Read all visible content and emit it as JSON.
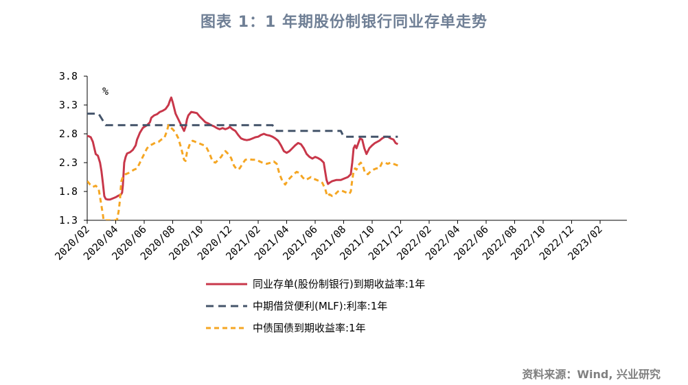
{
  "chart_data": {
    "type": "line",
    "title": "图表 1：1 年期股份制银行同业存单走势",
    "ylabel": "%",
    "ylim": [
      1.3,
      3.8
    ],
    "yticks": [
      "3.8",
      "3.3",
      "2.8",
      "2.3",
      "1.8",
      "1.3"
    ],
    "xlim": [
      "2020-02",
      "2023-03"
    ],
    "xticks": [
      "2020/02",
      "2020/04",
      "2020/06",
      "2020/08",
      "2020/10",
      "2020/12",
      "2021/02",
      "2021/04",
      "2021/06",
      "2021/08",
      "2021/10",
      "2021/12",
      "2022/02",
      "2022/04",
      "2022/06",
      "2022/08",
      "2022/10",
      "2022/12",
      "2023/02"
    ],
    "legend_position": "bottom",
    "grid": false,
    "series": [
      {
        "name": "同业存单(股份制银行)到期收益率:1年",
        "color": "#c8374a",
        "style": "solid",
        "points": [
          [
            0,
            2.76
          ],
          [
            0.1,
            2.76
          ],
          [
            0.25,
            2.74
          ],
          [
            0.4,
            2.66
          ],
          [
            0.5,
            2.55
          ],
          [
            0.6,
            2.45
          ],
          [
            0.75,
            2.42
          ],
          [
            0.9,
            2.3
          ],
          [
            1.0,
            2.15
          ],
          [
            1.1,
            1.95
          ],
          [
            1.2,
            1.72
          ],
          [
            1.3,
            1.67
          ],
          [
            1.45,
            1.66
          ],
          [
            1.6,
            1.66
          ],
          [
            1.8,
            1.68
          ],
          [
            2.0,
            1.7
          ],
          [
            2.2,
            1.73
          ],
          [
            2.35,
            1.74
          ],
          [
            2.45,
            1.78
          ],
          [
            2.5,
            1.9
          ],
          [
            2.55,
            2.1
          ],
          [
            2.6,
            2.3
          ],
          [
            2.7,
            2.4
          ],
          [
            2.8,
            2.46
          ],
          [
            3.0,
            2.48
          ],
          [
            3.2,
            2.52
          ],
          [
            3.4,
            2.6
          ],
          [
            3.5,
            2.7
          ],
          [
            3.7,
            2.82
          ],
          [
            3.9,
            2.9
          ],
          [
            4.0,
            2.92
          ],
          [
            4.2,
            2.95
          ],
          [
            4.4,
            3.0
          ],
          [
            4.5,
            3.08
          ],
          [
            4.7,
            3.12
          ],
          [
            4.9,
            3.14
          ],
          [
            5.1,
            3.18
          ],
          [
            5.3,
            3.2
          ],
          [
            5.5,
            3.23
          ],
          [
            5.7,
            3.3
          ],
          [
            5.8,
            3.37
          ],
          [
            5.9,
            3.43
          ],
          [
            6.0,
            3.35
          ],
          [
            6.1,
            3.25
          ],
          [
            6.2,
            3.15
          ],
          [
            6.4,
            3.05
          ],
          [
            6.6,
            2.95
          ],
          [
            6.8,
            2.85
          ],
          [
            6.9,
            2.92
          ],
          [
            7.0,
            3.05
          ],
          [
            7.1,
            3.12
          ],
          [
            7.3,
            3.18
          ],
          [
            7.5,
            3.17
          ],
          [
            7.7,
            3.16
          ],
          [
            7.9,
            3.1
          ],
          [
            8.1,
            3.05
          ],
          [
            8.3,
            3.0
          ],
          [
            8.5,
            2.98
          ],
          [
            8.7,
            2.95
          ],
          [
            8.9,
            2.93
          ],
          [
            9.1,
            2.9
          ],
          [
            9.3,
            2.88
          ],
          [
            9.5,
            2.9
          ],
          [
            9.7,
            2.88
          ],
          [
            9.9,
            2.9
          ],
          [
            10.0,
            2.92
          ],
          [
            10.2,
            2.88
          ],
          [
            10.4,
            2.85
          ],
          [
            10.6,
            2.78
          ],
          [
            10.8,
            2.72
          ],
          [
            11.0,
            2.7
          ],
          [
            11.2,
            2.69
          ],
          [
            11.4,
            2.7
          ],
          [
            11.6,
            2.72
          ],
          [
            11.8,
            2.74
          ],
          [
            12.0,
            2.75
          ],
          [
            12.2,
            2.78
          ],
          [
            12.4,
            2.8
          ],
          [
            12.6,
            2.78
          ],
          [
            12.8,
            2.77
          ],
          [
            13.0,
            2.75
          ],
          [
            13.2,
            2.72
          ],
          [
            13.4,
            2.68
          ],
          [
            13.6,
            2.6
          ],
          [
            13.8,
            2.5
          ],
          [
            14.0,
            2.47
          ],
          [
            14.2,
            2.5
          ],
          [
            14.4,
            2.55
          ],
          [
            14.6,
            2.6
          ],
          [
            14.8,
            2.64
          ],
          [
            15.0,
            2.62
          ],
          [
            15.2,
            2.55
          ],
          [
            15.4,
            2.45
          ],
          [
            15.6,
            2.4
          ],
          [
            15.8,
            2.37
          ],
          [
            16.0,
            2.4
          ],
          [
            16.2,
            2.38
          ],
          [
            16.4,
            2.35
          ],
          [
            16.6,
            2.3
          ],
          [
            16.7,
            2.15
          ],
          [
            16.8,
            2.0
          ],
          [
            16.9,
            1.93
          ],
          [
            17.0,
            1.95
          ],
          [
            17.2,
            1.98
          ],
          [
            17.5,
            2.0
          ],
          [
            17.8,
            2.0
          ],
          [
            18.0,
            2.02
          ],
          [
            18.3,
            2.05
          ],
          [
            18.5,
            2.1
          ],
          [
            18.6,
            2.3
          ],
          [
            18.7,
            2.55
          ],
          [
            18.8,
            2.6
          ],
          [
            18.9,
            2.55
          ],
          [
            19.0,
            2.62
          ],
          [
            19.15,
            2.72
          ],
          [
            19.3,
            2.7
          ],
          [
            19.45,
            2.55
          ],
          [
            19.6,
            2.45
          ],
          [
            19.8,
            2.55
          ],
          [
            20.0,
            2.6
          ],
          [
            20.2,
            2.64
          ],
          [
            20.5,
            2.68
          ],
          [
            20.7,
            2.72
          ],
          [
            20.9,
            2.75
          ],
          [
            21.1,
            2.75
          ],
          [
            21.3,
            2.72
          ],
          [
            21.5,
            2.7
          ],
          [
            21.65,
            2.64
          ],
          [
            21.8,
            2.62
          ]
        ]
      },
      {
        "name": "中期借贷便利(MLF):利率:1年",
        "color": "#44546a",
        "style": "dashed",
        "points": [
          [
            0,
            3.15
          ],
          [
            0.8,
            3.15
          ],
          [
            1.3,
            2.95
          ],
          [
            8.2,
            2.95
          ],
          [
            8.5,
            2.95
          ],
          [
            13.0,
            2.95
          ],
          [
            13.3,
            2.85
          ],
          [
            17.8,
            2.85
          ],
          [
            18.0,
            2.75
          ],
          [
            21.8,
            2.75
          ]
        ]
      },
      {
        "name": "中债国债到期收益率:1年",
        "color": "#f5a623",
        "style": "dashed",
        "points": [
          [
            0,
            1.98
          ],
          [
            0.2,
            1.92
          ],
          [
            0.4,
            1.88
          ],
          [
            0.6,
            1.9
          ],
          [
            0.8,
            1.85
          ],
          [
            0.9,
            1.7
          ],
          [
            1.0,
            1.55
          ],
          [
            1.1,
            1.4
          ],
          [
            1.15,
            1.3
          ],
          [
            1.2,
            1.3
          ],
          [
            1.9,
            1.3
          ],
          [
            2.0,
            1.3
          ],
          [
            2.1,
            1.32
          ],
          [
            2.2,
            1.45
          ],
          [
            2.3,
            1.65
          ],
          [
            2.35,
            1.85
          ],
          [
            2.4,
            1.98
          ],
          [
            2.5,
            2.05
          ],
          [
            2.7,
            2.1
          ],
          [
            2.9,
            2.12
          ],
          [
            3.1,
            2.15
          ],
          [
            3.3,
            2.18
          ],
          [
            3.5,
            2.2
          ],
          [
            3.7,
            2.3
          ],
          [
            3.9,
            2.4
          ],
          [
            4.0,
            2.45
          ],
          [
            4.2,
            2.55
          ],
          [
            4.4,
            2.6
          ],
          [
            4.6,
            2.62
          ],
          [
            4.8,
            2.65
          ],
          [
            5.0,
            2.66
          ],
          [
            5.2,
            2.7
          ],
          [
            5.4,
            2.72
          ],
          [
            5.6,
            2.85
          ],
          [
            5.7,
            2.95
          ],
          [
            5.8,
            2.92
          ],
          [
            6.0,
            2.88
          ],
          [
            6.2,
            2.82
          ],
          [
            6.4,
            2.72
          ],
          [
            6.6,
            2.55
          ],
          [
            6.8,
            2.35
          ],
          [
            6.9,
            2.33
          ],
          [
            7.0,
            2.48
          ],
          [
            7.2,
            2.62
          ],
          [
            7.4,
            2.68
          ],
          [
            7.6,
            2.66
          ],
          [
            7.8,
            2.64
          ],
          [
            8.0,
            2.62
          ],
          [
            8.2,
            2.6
          ],
          [
            8.4,
            2.55
          ],
          [
            8.6,
            2.45
          ],
          [
            8.8,
            2.32
          ],
          [
            9.0,
            2.3
          ],
          [
            9.2,
            2.35
          ],
          [
            9.4,
            2.4
          ],
          [
            9.6,
            2.48
          ],
          [
            9.7,
            2.5
          ],
          [
            9.9,
            2.45
          ],
          [
            10.1,
            2.38
          ],
          [
            10.3,
            2.25
          ],
          [
            10.5,
            2.18
          ],
          [
            10.7,
            2.2
          ],
          [
            10.9,
            2.28
          ],
          [
            11.1,
            2.35
          ],
          [
            11.3,
            2.36
          ],
          [
            11.6,
            2.35
          ],
          [
            11.9,
            2.35
          ],
          [
            12.1,
            2.32
          ],
          [
            12.3,
            2.3
          ],
          [
            12.6,
            2.28
          ],
          [
            12.9,
            2.3
          ],
          [
            13.1,
            2.32
          ],
          [
            13.3,
            2.28
          ],
          [
            13.5,
            2.1
          ],
          [
            13.7,
            1.98
          ],
          [
            13.9,
            1.92
          ],
          [
            14.1,
            2.0
          ],
          [
            14.3,
            2.05
          ],
          [
            14.5,
            2.1
          ],
          [
            14.7,
            2.14
          ],
          [
            14.9,
            2.12
          ],
          [
            15.1,
            2.05
          ],
          [
            15.3,
            2.0
          ],
          [
            15.5,
            2.02
          ],
          [
            15.7,
            2.05
          ],
          [
            15.9,
            2.02
          ],
          [
            16.1,
            2.0
          ],
          [
            16.3,
            1.98
          ],
          [
            16.5,
            1.95
          ],
          [
            16.7,
            1.85
          ],
          [
            16.85,
            1.72
          ],
          [
            17.0,
            1.75
          ],
          [
            17.2,
            1.72
          ],
          [
            17.4,
            1.75
          ],
          [
            17.6,
            1.8
          ],
          [
            17.8,
            1.82
          ],
          [
            18.0,
            1.8
          ],
          [
            18.2,
            1.78
          ],
          [
            18.4,
            1.76
          ],
          [
            18.5,
            1.8
          ],
          [
            18.6,
            2.0
          ],
          [
            18.7,
            2.15
          ],
          [
            18.8,
            2.2
          ],
          [
            18.9,
            2.18
          ],
          [
            19.0,
            2.25
          ],
          [
            19.2,
            2.3
          ],
          [
            19.35,
            2.25
          ],
          [
            19.5,
            2.12
          ],
          [
            19.7,
            2.1
          ],
          [
            19.9,
            2.15
          ],
          [
            20.1,
            2.18
          ],
          [
            20.3,
            2.2
          ],
          [
            20.5,
            2.2
          ],
          [
            20.7,
            2.3
          ],
          [
            20.9,
            2.3
          ],
          [
            21.1,
            2.28
          ],
          [
            21.3,
            2.3
          ],
          [
            21.5,
            2.28
          ],
          [
            21.8,
            2.25
          ]
        ]
      }
    ]
  },
  "source": "资料来源：Wind, 兴业研究"
}
